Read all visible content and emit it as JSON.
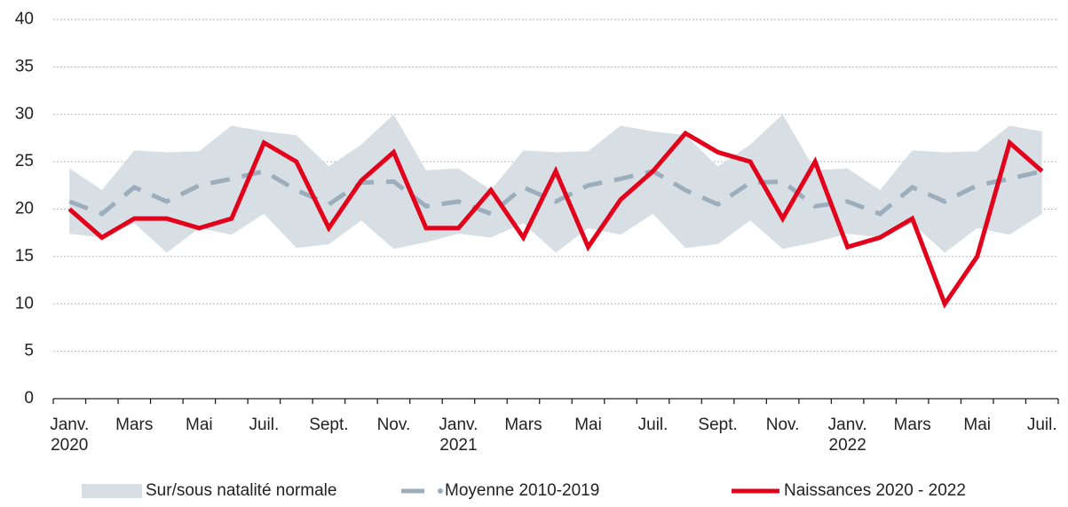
{
  "chart_data": {
    "type": "line",
    "categories": [
      "Janv. 2020",
      null,
      "Mars",
      null,
      "Mai",
      null,
      "Juil.",
      null,
      "Sept.",
      null,
      "Nov.",
      null,
      "Janv. 2021",
      null,
      "Mars",
      null,
      "Mai",
      null,
      "Juil.",
      null,
      "Sept.",
      null,
      "Nov.",
      null,
      "Janv. 2022",
      null,
      "Mars",
      null,
      "Mai",
      null,
      "Juil."
    ],
    "ylim": [
      0,
      40
    ],
    "yticks": [
      0,
      5,
      10,
      15,
      20,
      25,
      30,
      35,
      40
    ],
    "grid": true,
    "legend": "bottom",
    "series": [
      {
        "name": "Sur/sous natalité normale",
        "color": "#d7dfe5",
        "type": "band",
        "upper": [
          24.3,
          22,
          26.2,
          26,
          26.1,
          28.8,
          28.2,
          27.8,
          24.5,
          26.8,
          30,
          24.1,
          24.3,
          22,
          26.2,
          26,
          26.1,
          28.8,
          28.2,
          27.8,
          24.5,
          26.8,
          30,
          24.1,
          24.3,
          22,
          26.2,
          26,
          26.1,
          28.8,
          28.2
        ],
        "lower": [
          17.4,
          17,
          18.5,
          15.4,
          18,
          17.3,
          19.5,
          15.9,
          16.3,
          18.8,
          15.8,
          16.5,
          17.4,
          17,
          18.5,
          15.4,
          18,
          17.3,
          19.5,
          15.9,
          16.3,
          18.8,
          15.8,
          16.5,
          17.4,
          17,
          18.5,
          15.4,
          18,
          17.3,
          19.5
        ]
      },
      {
        "name": "Moyenne 2010-2019",
        "color": "#9cadbc",
        "type": "dashed",
        "values": [
          20.8,
          19.5,
          22.3,
          20.8,
          22.5,
          23.2,
          24,
          22,
          20.5,
          22.8,
          22.9,
          20.3,
          20.8,
          19.5,
          22.3,
          20.8,
          22.5,
          23.2,
          24,
          22,
          20.5,
          22.8,
          22.9,
          20.3,
          20.8,
          19.5,
          22.3,
          20.8,
          22.5,
          23.2,
          24
        ]
      },
      {
        "name": "Naissances 2020 - 2022",
        "color": "#e2001a",
        "type": "solid",
        "values": [
          20,
          17,
          19,
          19,
          18,
          19,
          27,
          25,
          18,
          23,
          26,
          18,
          18,
          22,
          17,
          24,
          16,
          21,
          24,
          28,
          26,
          25,
          19,
          25,
          16,
          17,
          19,
          10,
          15,
          27,
          24
        ]
      }
    ]
  }
}
